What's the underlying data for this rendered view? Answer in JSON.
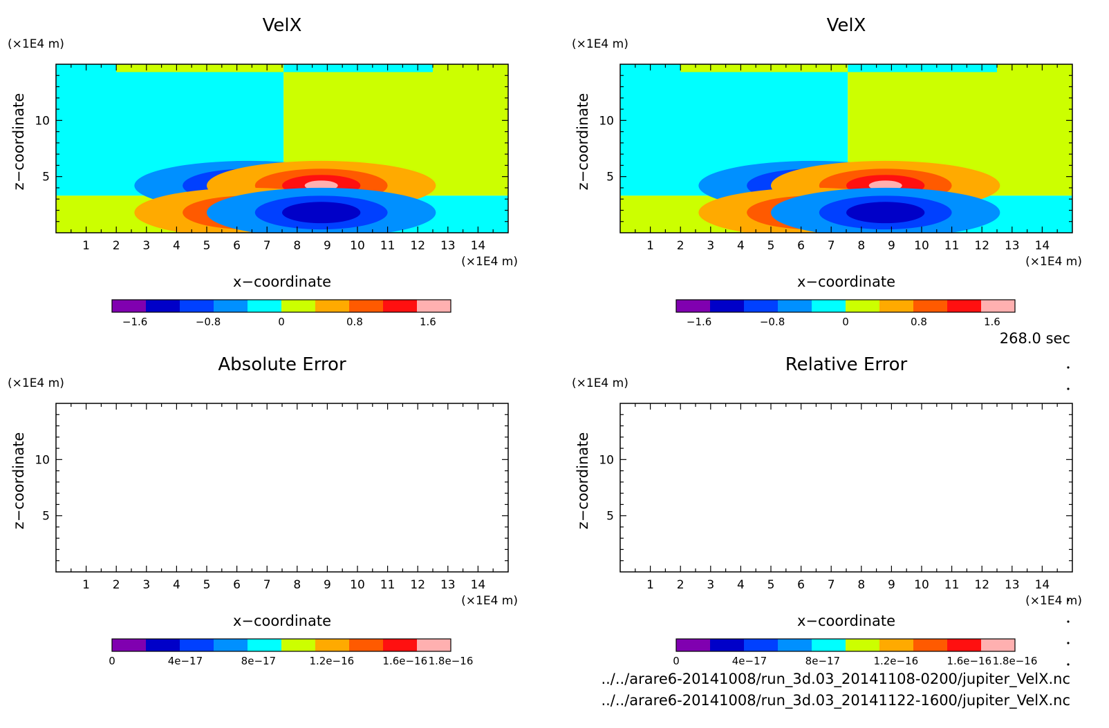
{
  "time_label": "268.0 sec",
  "files": [
    "../../arare6-20141008/run_3d.03_20141108-0200/jupiter_VelX.nc",
    "../../arare6-20141008/run_3d.03_20141122-1600/jupiter_VelX.nc"
  ],
  "chart_data": [
    {
      "type": "heatmap",
      "title": "VelX",
      "xlabel": "x−coordinate",
      "ylabel": "z−coordinate",
      "x_unit": "(×1E4 m)",
      "y_unit": "(×1E4 m)",
      "xlim": [
        0,
        15
      ],
      "ylim": [
        0,
        15
      ],
      "x_ticks": [
        1,
        2,
        3,
        4,
        5,
        6,
        7,
        8,
        9,
        10,
        11,
        12,
        13,
        14
      ],
      "y_ticks": [
        5,
        10
      ],
      "colorbar": {
        "colors": [
          "#8000b0",
          "#0000c8",
          "#0040ff",
          "#0090ff",
          "#00ffff",
          "#ccff00",
          "#ffaa00",
          "#ff5a00",
          "#ff1010",
          "#ffb0b0"
        ],
        "tick_labels": [
          "−1.6",
          "−0.8",
          "0",
          "0.8",
          "1.6"
        ],
        "tick_values": [
          -1.6,
          -0.8,
          0,
          0.8,
          1.6
        ],
        "range": [
          -1.85,
          1.85
        ]
      },
      "features": [
        {
          "kind": "negative_vortex",
          "center": [
            6.4,
            4.2
          ],
          "min_level": -1.6
        },
        {
          "kind": "positive_vortex",
          "center": [
            8.8,
            4.2
          ],
          "max_level": 1.6
        },
        {
          "kind": "positive_vortex",
          "center": [
            6.4,
            1.8
          ],
          "max_level": 1.2
        },
        {
          "kind": "negative_vortex",
          "center": [
            8.8,
            1.8
          ],
          "min_level": -1.2
        }
      ],
      "grid": false,
      "legend": "colorbar-bottom"
    },
    {
      "type": "heatmap",
      "title": "VelX",
      "xlabel": "x−coordinate",
      "ylabel": "z−coordinate",
      "x_unit": "(×1E4 m)",
      "y_unit": "(×1E4 m)",
      "xlim": [
        0,
        15
      ],
      "ylim": [
        0,
        15
      ],
      "x_ticks": [
        1,
        2,
        3,
        4,
        5,
        6,
        7,
        8,
        9,
        10,
        11,
        12,
        13,
        14
      ],
      "y_ticks": [
        5,
        10
      ],
      "colorbar": {
        "colors": [
          "#8000b0",
          "#0000c8",
          "#0040ff",
          "#0090ff",
          "#00ffff",
          "#ccff00",
          "#ffaa00",
          "#ff5a00",
          "#ff1010",
          "#ffb0b0"
        ],
        "tick_labels": [
          "−1.6",
          "−0.8",
          "0",
          "0.8",
          "1.6"
        ],
        "tick_values": [
          -1.6,
          -0.8,
          0,
          0.8,
          1.6
        ],
        "range": [
          -1.85,
          1.85
        ]
      },
      "features": [
        {
          "kind": "negative_vortex",
          "center": [
            6.4,
            4.2
          ],
          "min_level": -1.6
        },
        {
          "kind": "positive_vortex",
          "center": [
            8.8,
            4.2
          ],
          "max_level": 1.6
        },
        {
          "kind": "positive_vortex",
          "center": [
            6.4,
            1.8
          ],
          "max_level": 1.2
        },
        {
          "kind": "negative_vortex",
          "center": [
            8.8,
            1.8
          ],
          "min_level": -1.2
        }
      ],
      "grid": false,
      "legend": "colorbar-bottom"
    },
    {
      "type": "heatmap",
      "title": "Absolute Error",
      "xlabel": "x−coordinate",
      "ylabel": "z−coordinate",
      "x_unit": "(×1E4 m)",
      "y_unit": "(×1E4 m)",
      "xlim": [
        0,
        15
      ],
      "ylim": [
        0,
        15
      ],
      "x_ticks": [
        1,
        2,
        3,
        4,
        5,
        6,
        7,
        8,
        9,
        10,
        11,
        12,
        13,
        14
      ],
      "y_ticks": [
        5,
        10
      ],
      "colorbar": {
        "colors": [
          "#8000b0",
          "#0000c8",
          "#0040ff",
          "#0090ff",
          "#00ffff",
          "#ccff00",
          "#ffaa00",
          "#ff5a00",
          "#ff1010",
          "#ffb0b0"
        ],
        "tick_labels": [
          "0",
          "4e−17",
          "8e−17",
          "1.2e−16",
          "1.6e−16",
          "1.8e−16"
        ],
        "tick_values": [
          0,
          4e-17,
          8e-17,
          1.2e-16,
          1.6e-16,
          1.85e-16
        ],
        "range": [
          0,
          1.85e-16
        ]
      },
      "features": [],
      "grid": false,
      "legend": "colorbar-bottom"
    },
    {
      "type": "heatmap",
      "title": "Relative Error",
      "xlabel": "x−coordinate",
      "ylabel": "z−coordinate",
      "x_unit": "(×1E4 m)",
      "y_unit": "(×1E4 m)",
      "xlim": [
        0,
        15
      ],
      "ylim": [
        0,
        15
      ],
      "x_ticks": [
        1,
        2,
        3,
        4,
        5,
        6,
        7,
        8,
        9,
        10,
        11,
        12,
        13,
        14
      ],
      "y_ticks": [
        5,
        10
      ],
      "colorbar": {
        "colors": [
          "#8000b0",
          "#0000c8",
          "#0040ff",
          "#0090ff",
          "#00ffff",
          "#ccff00",
          "#ffaa00",
          "#ff5a00",
          "#ff1010",
          "#ffb0b0"
        ],
        "tick_labels": [
          "0",
          "4e−17",
          "8e−17",
          "1.2e−16",
          "1.6e−16",
          "1.8e−16"
        ],
        "tick_values": [
          0,
          4e-17,
          8e-17,
          1.2e-16,
          1.6e-16,
          1.85e-16
        ],
        "range": [
          0,
          1.85e-16
        ]
      },
      "features": [],
      "grid": false,
      "legend": "colorbar-bottom"
    }
  ]
}
